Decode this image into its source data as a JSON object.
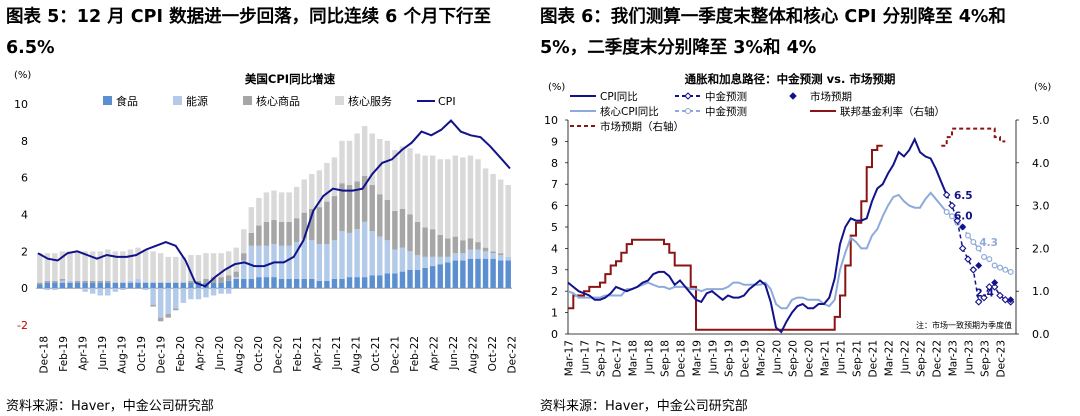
{
  "left": {
    "title_line1": "图表 5：12 月 CPI 数据进一步回落，同比连续 6 个月下行至",
    "title_line2": "6.5%",
    "source": "资料来源：Haver，中金公司研究部"
  },
  "right": {
    "title_line1": "图表 6：我们测算一季度末整体和核心 CPI 分别降至 4%和",
    "title_line2": "5%，二季度末分别降至 3%和 4%",
    "source": "资料来源：Haver，中金公司研究部"
  },
  "colors": {
    "food": "#5b8fd0",
    "energy": "#b3cbe8",
    "core_goods": "#a6a6a6",
    "core_services": "#d9d9d9",
    "cpi": "#12128a",
    "core_cpi": "#8eaadb",
    "fed": "#8b1414"
  },
  "chart_data": [
    {
      "type": "bar",
      "title": "美国CPI同比增速",
      "unit": "(%)",
      "stacked": true,
      "ylim": [
        -2,
        10
      ],
      "yticks": [
        -2,
        0,
        2,
        4,
        6,
        8,
        10
      ],
      "x_tick_labels": [
        "Dec-18",
        "Feb-19",
        "Apr-19",
        "Jun-19",
        "Aug-19",
        "Oct-19",
        "Dec-19",
        "Feb-20",
        "Apr-20",
        "Jun-20",
        "Aug-20",
        "Oct-20",
        "Dec-20",
        "Feb-21",
        "Apr-21",
        "Jun-21",
        "Aug-21",
        "Oct-21",
        "Dec-21",
        "Feb-22",
        "Apr-22",
        "Jun-22",
        "Aug-22",
        "Oct-22",
        "Dec-22"
      ],
      "legend_placement": "top",
      "series": [
        {
          "name": "食品",
          "kind": "bar",
          "values": [
            0.2,
            0.3,
            0.3,
            0.3,
            0.3,
            0.3,
            0.3,
            0.3,
            0.3,
            0.3,
            0.3,
            0.3,
            0.3,
            0.3,
            0.3,
            0.3,
            0.3,
            0.3,
            0.3,
            0.3,
            0.3,
            0.3,
            0.3,
            0.3,
            0.3,
            0.4,
            0.5,
            0.5,
            0.5,
            0.6,
            0.6,
            0.6,
            0.5,
            0.5,
            0.5,
            0.5,
            0.5,
            0.4,
            0.4,
            0.5,
            0.5,
            0.6,
            0.6,
            0.6,
            0.7,
            0.7,
            0.8,
            0.8,
            0.9,
            1.0,
            1.0,
            1.1,
            1.2,
            1.3,
            1.4,
            1.5,
            1.5,
            1.6,
            1.6,
            1.6,
            1.6,
            1.5,
            1.5
          ]
        },
        {
          "name": "能源",
          "kind": "bar",
          "values": [
            0.0,
            -0.1,
            -0.1,
            0.1,
            0.1,
            0.0,
            -0.2,
            -0.3,
            -0.4,
            -0.4,
            -0.2,
            -0.1,
            0.1,
            0.2,
            -0.1,
            -0.9,
            -1.6,
            -1.4,
            -1.1,
            -0.8,
            -0.6,
            -0.6,
            -0.5,
            -0.4,
            -0.3,
            -0.3,
            0.1,
            1.0,
            1.8,
            1.7,
            1.7,
            1.8,
            1.8,
            1.8,
            2.0,
            2.2,
            2.1,
            2.0,
            2.0,
            2.1,
            2.6,
            2.4,
            2.6,
            3.0,
            2.4,
            2.1,
            1.8,
            1.3,
            1.3,
            1.0,
            0.8,
            0.6,
            0.5,
            0.4,
            0.3,
            0.4,
            0.4,
            0.5,
            0.5,
            0.4,
            0.3,
            0.3,
            0.2
          ]
        },
        {
          "name": "核心商品",
          "kind": "bar",
          "values": [
            0.1,
            0.1,
            0.1,
            0.1,
            0.0,
            0.1,
            0.1,
            0.1,
            0.1,
            0.1,
            0.0,
            0.0,
            0.0,
            0.0,
            0.0,
            -0.1,
            -0.2,
            -0.2,
            -0.1,
            0.0,
            0.1,
            0.1,
            0.2,
            0.3,
            0.3,
            0.3,
            0.3,
            0.4,
            0.7,
            1.1,
            1.3,
            1.3,
            1.3,
            1.3,
            1.3,
            1.4,
            1.7,
            2.0,
            2.3,
            2.4,
            2.6,
            2.6,
            2.6,
            2.5,
            2.5,
            2.3,
            2.2,
            2.1,
            2.1,
            2.0,
            1.8,
            1.6,
            1.5,
            1.2,
            1.0,
            0.9,
            0.7,
            0.6,
            0.4,
            0.2,
            0.1,
            0.1,
            0.0
          ]
        },
        {
          "name": "核心服务",
          "kind": "bar",
          "values": [
            1.6,
            1.5,
            1.5,
            1.5,
            1.6,
            1.6,
            1.6,
            1.6,
            1.6,
            1.7,
            1.7,
            1.7,
            1.7,
            1.7,
            1.8,
            1.7,
            1.6,
            1.4,
            1.4,
            1.4,
            1.4,
            1.4,
            1.4,
            1.3,
            1.3,
            1.3,
            1.3,
            1.3,
            1.4,
            1.5,
            1.6,
            1.6,
            1.6,
            1.6,
            1.7,
            1.8,
            1.9,
            2.0,
            2.1,
            2.1,
            2.3,
            2.4,
            2.6,
            2.7,
            2.8,
            3.0,
            3.2,
            3.3,
            3.4,
            3.6,
            3.7,
            3.9,
            4.0,
            4.1,
            4.3,
            4.4,
            4.5,
            4.5,
            4.5,
            4.3,
            4.2,
            4.0,
            3.9
          ]
        },
        {
          "name": "CPI",
          "kind": "line",
          "values": [
            1.9,
            1.6,
            1.5,
            1.9,
            2.0,
            1.8,
            1.6,
            1.8,
            1.7,
            1.7,
            1.8,
            2.1,
            2.3,
            2.5,
            2.3,
            1.5,
            0.3,
            0.1,
            0.6,
            1.0,
            1.3,
            1.4,
            1.2,
            1.2,
            1.4,
            1.4,
            1.7,
            2.6,
            4.2,
            5.0,
            5.4,
            5.3,
            5.3,
            5.4,
            6.2,
            6.8,
            7.0,
            7.5,
            7.9,
            8.5,
            8.3,
            8.6,
            9.1,
            8.5,
            8.3,
            8.2,
            7.7,
            7.1,
            6.5
          ]
        }
      ]
    },
    {
      "type": "line",
      "title": "通胀和加息路径：中金预测 vs. 市场预期",
      "left_unit": "(%)",
      "right_unit": "(%)",
      "left_ylim": [
        0,
        10
      ],
      "left_yticks": [
        0,
        1,
        2,
        3,
        4,
        5,
        6,
        7,
        8,
        9,
        10
      ],
      "right_ylim": [
        0.0,
        5.0
      ],
      "right_yticks": [
        "0.0",
        "1.0",
        "2.0",
        "3.0",
        "4.0",
        "5.0"
      ],
      "x_tick_labels": [
        "Mar-17",
        "Jun-17",
        "Sep-17",
        "Dec-17",
        "Mar-18",
        "Jun-18",
        "Sep-18",
        "Dec-18",
        "Mar-19",
        "Jun-19",
        "Sep-19",
        "Dec-19",
        "Mar-20",
        "Jun-20",
        "Sep-20",
        "Dec-20",
        "Mar-21",
        "Jun-21",
        "Sep-21",
        "Dec-21",
        "Mar-22",
        "Jun-22",
        "Sep-22",
        "Dec-22",
        "Mar-23",
        "Jun-23",
        "Sep-23",
        "Dec-23"
      ],
      "legend": [
        {
          "name": "CPI同比",
          "style": "solid",
          "color": "#12128a"
        },
        {
          "name": "中金预测",
          "style": "dashed-diamond",
          "color": "#12128a"
        },
        {
          "name": "市场预期",
          "style": "diamond",
          "color": "#12128a"
        },
        {
          "name": "核心CPI同比",
          "style": "solid",
          "color": "#8eaadb"
        },
        {
          "name": "中金预测",
          "style": "dashed-circle",
          "color": "#8eaadb"
        },
        {
          "name": "联邦基金利率（右轴）",
          "style": "solid",
          "color": "#8b1414"
        },
        {
          "name": "市场预期（右轴）",
          "style": "dashed",
          "color": "#8b1414"
        }
      ],
      "annotations": [
        "6.5",
        "6.0",
        "4.3",
        "2.4"
      ],
      "note": "注：市场一致预期为季度值",
      "series": [
        {
          "name": "CPI同比",
          "axis": "left",
          "values": [
            2.4,
            2.2,
            2.0,
            1.9,
            1.8,
            1.6,
            1.6,
            1.7,
            1.9,
            2.2,
            2.1,
            2.0,
            2.1,
            2.2,
            2.4,
            2.5,
            2.8,
            2.9,
            2.9,
            2.7,
            2.3,
            2.5,
            2.2,
            1.9,
            1.6,
            1.5,
            1.9,
            2.0,
            1.8,
            1.6,
            1.8,
            1.7,
            1.7,
            1.8,
            2.1,
            2.3,
            2.5,
            2.3,
            1.5,
            0.3,
            0.1,
            0.6,
            1.0,
            1.3,
            1.4,
            1.2,
            1.2,
            1.4,
            1.4,
            1.7,
            2.6,
            4.2,
            5.0,
            5.4,
            5.3,
            5.3,
            5.4,
            6.2,
            6.8,
            7.0,
            7.5,
            7.9,
            8.5,
            8.3,
            8.6,
            9.1,
            8.5,
            8.3,
            8.2,
            7.7,
            7.1,
            6.5
          ]
        },
        {
          "name": "核心CPI同比",
          "axis": "left",
          "values": [
            2.0,
            1.9,
            1.7,
            1.7,
            1.7,
            1.7,
            1.7,
            1.8,
            1.8,
            1.8,
            1.8,
            2.1,
            2.1,
            2.2,
            2.3,
            2.4,
            2.3,
            2.2,
            2.2,
            2.1,
            2.2,
            2.2,
            2.2,
            2.1,
            2.1,
            2.0,
            2.1,
            2.1,
            2.1,
            2.1,
            2.2,
            2.4,
            2.4,
            2.3,
            2.3,
            2.3,
            2.3,
            2.4,
            2.1,
            1.4,
            1.2,
            1.2,
            1.6,
            1.7,
            1.7,
            1.6,
            1.6,
            1.6,
            1.4,
            1.3,
            1.6,
            3.0,
            3.8,
            4.5,
            4.3,
            4.0,
            4.0,
            4.6,
            4.9,
            5.5,
            6.0,
            6.4,
            6.5,
            6.2,
            6.0,
            5.9,
            5.9,
            6.3,
            6.6,
            6.3,
            6.0,
            5.7
          ]
        },
        {
          "name": "中金预测 (CPI)",
          "axis": "left",
          "values": [
            6.5,
            6.0,
            5.3,
            4.0,
            3.5,
            3.0,
            1.5,
            1.7,
            2.2,
            2.2,
            1.8,
            1.6,
            1.5
          ]
        },
        {
          "name": "中金预测 (核心CPI)",
          "axis": "left",
          "values": [
            5.7,
            5.5,
            5.2,
            5.0,
            4.6,
            4.3,
            4.0,
            3.6,
            3.5,
            3.2,
            3.1,
            3.0,
            2.9
          ]
        },
        {
          "name": "市场预期",
          "axis": "left",
          "values": [
            5.0,
            3.2,
            2.4,
            1.6
          ]
        },
        {
          "name": "联邦基金利率（右轴）",
          "axis": "right",
          "values": [
            0.6,
            0.9,
            0.9,
            1.0,
            1.1,
            1.1,
            1.2,
            1.4,
            1.6,
            1.7,
            1.9,
            2.1,
            2.2,
            2.2,
            2.2,
            2.2,
            2.2,
            2.2,
            2.1,
            1.9,
            1.6,
            1.6,
            1.6,
            1.1,
            0.1,
            0.1,
            0.1,
            0.1,
            0.1,
            0.1,
            0.1,
            0.1,
            0.1,
            0.1,
            0.1,
            0.1,
            0.1,
            0.1,
            0.1,
            0.1,
            0.1,
            0.1,
            0.1,
            0.1,
            0.1,
            0.1,
            0.1,
            0.1,
            0.1,
            0.1,
            0.4,
            0.9,
            1.6,
            2.3,
            2.6,
            3.1,
            3.9,
            4.3,
            4.4
          ]
        },
        {
          "name": "市场预期（右轴）",
          "axis": "right",
          "values": [
            4.4,
            4.6,
            4.8,
            4.8,
            4.8,
            4.8,
            4.8,
            4.8,
            4.8,
            4.8,
            4.6,
            4.5
          ]
        }
      ]
    }
  ]
}
